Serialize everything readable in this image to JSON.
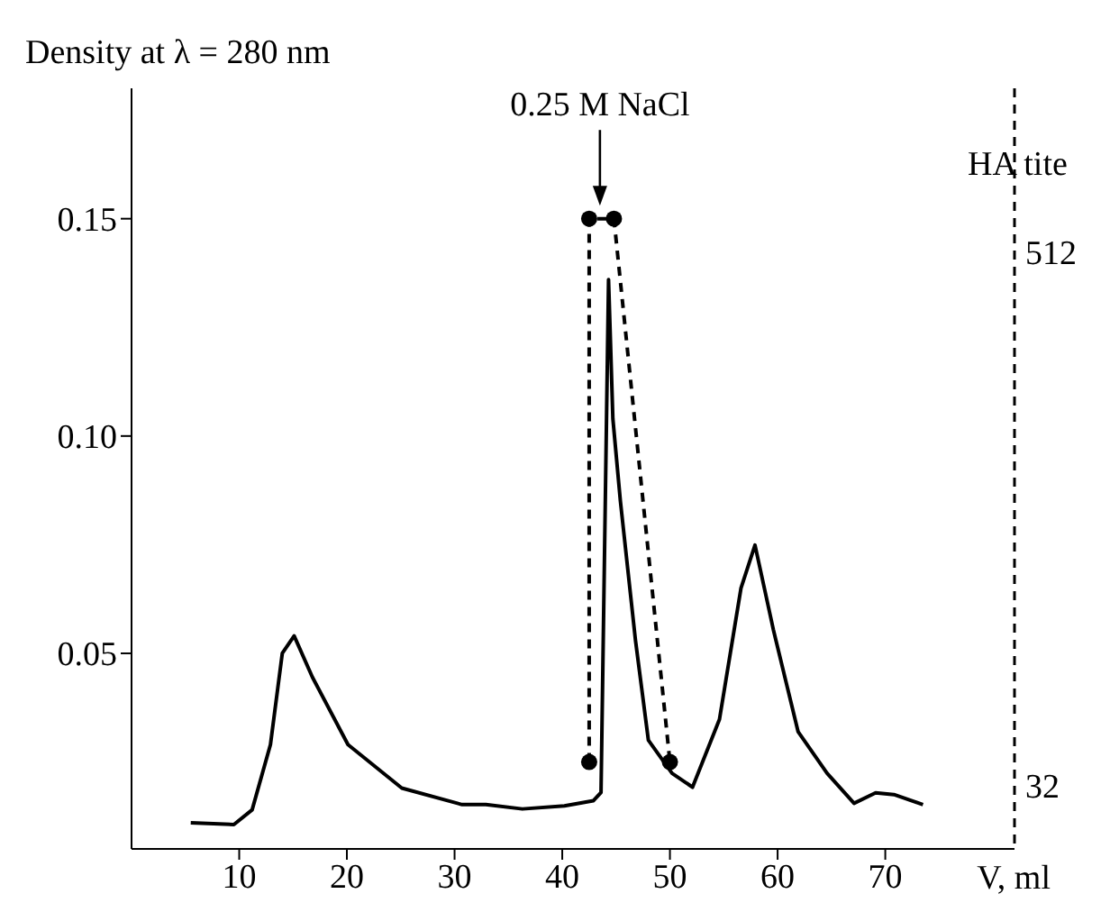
{
  "chart_data": {
    "type": "line",
    "ylabel": "Density at λ = 280 nm",
    "xlabel": "V, ml",
    "y2label": "HA tite",
    "xlim": [
      0,
      82
    ],
    "xticks": [
      10,
      20,
      30,
      40,
      50,
      60,
      70
    ],
    "ylim": [
      0.005,
      0.18
    ],
    "yticks": [
      0.05,
      {
        "value": 0.1,
        "label": "0.10"
      },
      0.15
    ],
    "y2lim": [
      23,
      1200
    ],
    "y2ticks": [
      32,
      512
    ],
    "log": "y2",
    "annotations": [
      {
        "text": "0.25 M NaCl",
        "x": 43.5,
        "y": 0.153
      }
    ],
    "series": [
      {
        "color": "#000000",
        "line_style": "solid",
        "marker": "none",
        "x": [
          5.5,
          9.5,
          11.2,
          12.9,
          14.0,
          15.1,
          16.8,
          20.1,
          25.1,
          30.7,
          32.9,
          36.3,
          40.2,
          42.9,
          43.6,
          44.3,
          44.7,
          45.4,
          46.8,
          48.0,
          50.2,
          52.1,
          54.6,
          56.6,
          57.9,
          59.6,
          61.9,
          64.6,
          67.1,
          69.1,
          70.8,
          73.5
        ],
        "values": [
          0.011,
          0.0106,
          0.014,
          0.029,
          0.05,
          0.054,
          0.0445,
          0.029,
          0.019,
          0.0152,
          0.0152,
          0.0142,
          0.0149,
          0.0161,
          0.018,
          0.136,
          0.104,
          0.085,
          0.053,
          0.03,
          0.0224,
          0.0192,
          0.0348,
          0.065,
          0.0749,
          0.0555,
          0.032,
          0.0224,
          0.0155,
          0.0179,
          0.0175,
          0.0152
        ]
      },
      {
        "color": "#000000",
        "line_style": "dashed",
        "marker": "circle",
        "x": [
          42.5,
          42.5,
          44.8,
          50
        ],
        "values": [
          0.025,
          0.15,
          0.15,
          0.025
        ]
      }
    ]
  }
}
